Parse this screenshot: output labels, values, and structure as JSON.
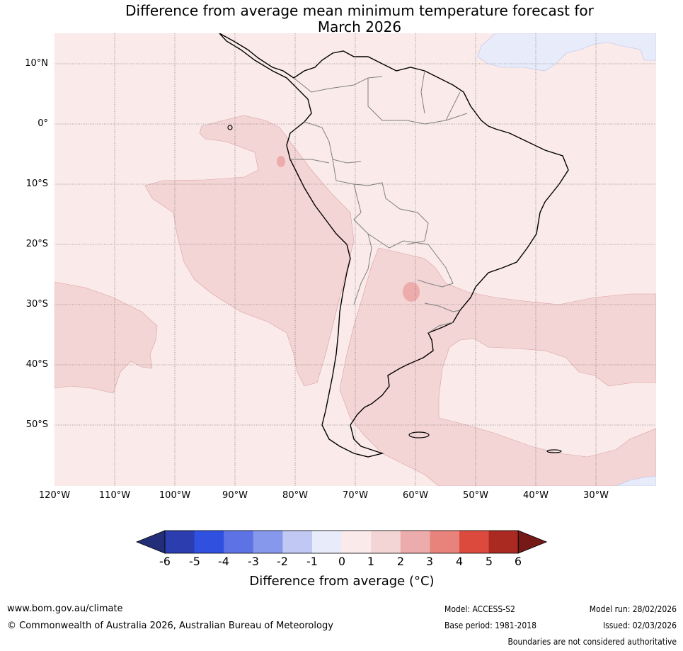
{
  "title": {
    "line1": "Difference from average mean minimum temperature forecast for",
    "line2": "March 2026"
  },
  "map": {
    "region": "South America",
    "lat_labels": [
      "10°N",
      "0°",
      "10°S",
      "20°S",
      "30°S",
      "40°S",
      "50°S"
    ],
    "lon_labels": [
      "120°W",
      "110°W",
      "100°W",
      "90°W",
      "80°W",
      "70°W",
      "60°W",
      "50°W",
      "40°W",
      "30°W"
    ],
    "dominant_anomaly_band": "0 to 1",
    "colors": {
      "band_-1_0": "#e8ecfa",
      "band_0_1": "#faeaea",
      "band_1_2": "#f4d5d5",
      "band_2_3": "#ecacab",
      "coast": "#000000",
      "borders": "#808080",
      "gridlines": "#555555"
    }
  },
  "colorbar": {
    "ticks": [
      "-6",
      "-5",
      "-4",
      "-3",
      "-2",
      "-1",
      "0",
      "1",
      "2",
      "3",
      "4",
      "5",
      "6"
    ],
    "colors": [
      "#222e77",
      "#2b3daf",
      "#3050e0",
      "#5d72e5",
      "#8698ec",
      "#c0c8f3",
      "#e8ecfa",
      "#faeaea",
      "#f4d5d5",
      "#ecacab",
      "#e8837c",
      "#dc4a3e",
      "#aa2a21",
      "#751a17"
    ],
    "label": "Difference from average (°C)"
  },
  "footer": {
    "website": "www.bom.gov.au/climate",
    "copyright": "© Commonwealth of Australia 2026, Australian Bureau of Meteorology",
    "model": "Model: ACCESS-S2",
    "base_period": "Base period: 1981-2018",
    "model_run": "Model run: 28/02/2026",
    "issued": "Issued: 02/03/2026",
    "boundaries_note": "Boundaries are not considered authoritative"
  }
}
